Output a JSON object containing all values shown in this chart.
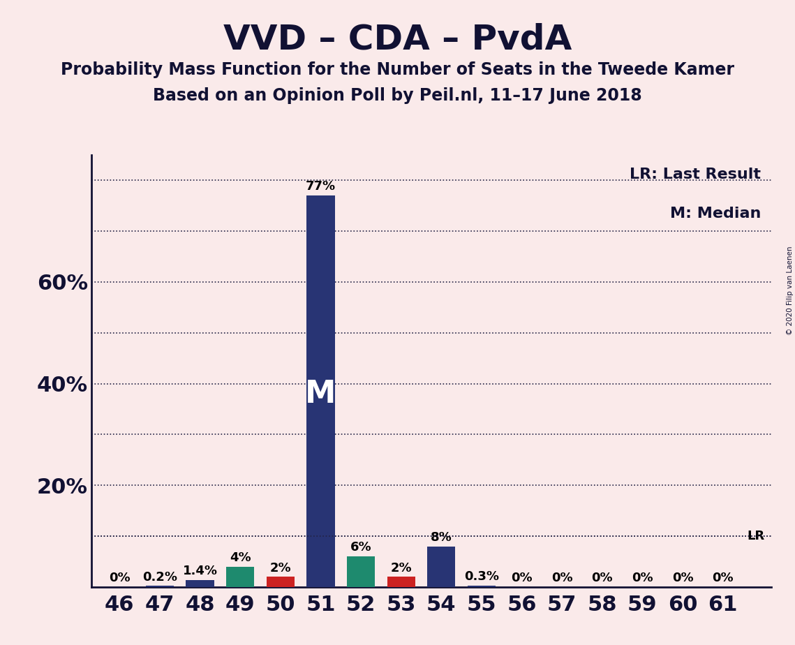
{
  "title": "VVD – CDA – PvdA",
  "subtitle1": "Probability Mass Function for the Number of Seats in the Tweede Kamer",
  "subtitle2": "Based on an Opinion Poll by Peil.nl, 11–17 June 2018",
  "copyright": "© 2020 Filip van Laenen",
  "seats": [
    46,
    47,
    48,
    49,
    50,
    51,
    52,
    53,
    54,
    55,
    56,
    57,
    58,
    59,
    60,
    61
  ],
  "values": [
    0.0,
    0.2,
    1.4,
    4.0,
    2.0,
    77.0,
    6.0,
    2.0,
    8.0,
    0.3,
    0.0,
    0.0,
    0.0,
    0.0,
    0.0,
    0.0
  ],
  "labels": [
    "0%",
    "0.2%",
    "1.4%",
    "4%",
    "2%",
    "77%",
    "6%",
    "2%",
    "8%",
    "0.3%",
    "0%",
    "0%",
    "0%",
    "0%",
    "0%",
    "0%"
  ],
  "bar_colors": [
    "#283474",
    "#283474",
    "#283474",
    "#1e8a6e",
    "#cc2222",
    "#283474",
    "#1e8a6e",
    "#cc2222",
    "#283474",
    "#283474",
    "#283474",
    "#283474",
    "#283474",
    "#283474",
    "#283474",
    "#283474"
  ],
  "background_color": "#faeaea",
  "median_seat": 51,
  "lr_value": 10.0,
  "lr_label": "LR",
  "legend_text1": "LR: Last Result",
  "legend_text2": "M: Median",
  "median_label": "M",
  "ylim": [
    0,
    85
  ],
  "ytick_major": [
    20,
    40,
    60
  ],
  "ytick_minor_grid": [
    10,
    20,
    30,
    40,
    50,
    60,
    70,
    80
  ],
  "title_fontsize": 36,
  "subtitle_fontsize": 17,
  "label_fontsize": 13,
  "tick_fontsize": 22
}
